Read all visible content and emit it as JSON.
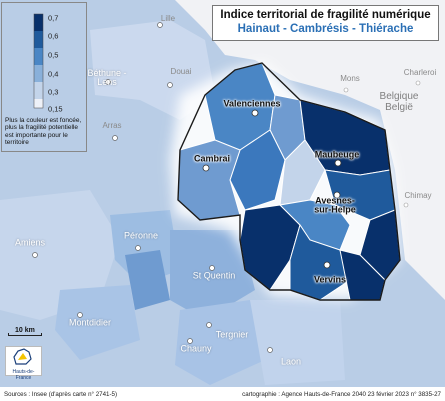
{
  "title": {
    "line1": "Indice territorial de fragilité numérique",
    "line2": "Hainaut - Cambrésis - Thiérache"
  },
  "legend": {
    "ticks": [
      "0,7",
      "0,6",
      "0,5",
      "0,4",
      "0,3",
      "0,15"
    ],
    "colors": [
      "#08306b",
      "#1f5a9c",
      "#4a86c5",
      "#89b0da",
      "#c3d4ea",
      "#eef1f8"
    ],
    "note": "Plus la couleur est foncée, plus la fragilité potentielle est importante pour le territoire"
  },
  "cities_study": [
    {
      "name": "Valenciennes",
      "id": "valenciennes"
    },
    {
      "name": "Maubeuge",
      "id": "maubeuge"
    },
    {
      "name": "Cambrai",
      "id": "cambrai"
    },
    {
      "name": "Avesnes-sur-Helpe",
      "id": "avesnes"
    },
    {
      "name": "Vervins",
      "id": "vervins"
    }
  ],
  "cities_region": [
    {
      "name": "Lille",
      "id": "lille"
    },
    {
      "name": "Béthune - Lens",
      "id": "bethune-lens"
    },
    {
      "name": "Douai",
      "id": "douai"
    },
    {
      "name": "Arras",
      "id": "arras"
    },
    {
      "name": "Amiens",
      "id": "amiens"
    },
    {
      "name": "Péronne",
      "id": "peronne"
    },
    {
      "name": "St Quentin",
      "id": "st-quentin"
    },
    {
      "name": "Montdidier",
      "id": "montdidier"
    },
    {
      "name": "Tergnier",
      "id": "tergnier"
    },
    {
      "name": "Chauny",
      "id": "chauny"
    },
    {
      "name": "Laon",
      "id": "laon"
    }
  ],
  "cities_belgium": [
    {
      "name": "Mons",
      "id": "mons"
    },
    {
      "name": "Charleroi",
      "id": "charleroi"
    },
    {
      "name": "Chimay",
      "id": "chimay"
    }
  ],
  "country": "Belgique België",
  "scale": "10 km",
  "logo_text": "Hauts-de-France",
  "footer": {
    "sources": "Sources : Insee (d'après carte n° 2741-5)",
    "credits": "cartographie : Agence Hauts-de-France 2040    23 février 2023  n° 3835-27"
  }
}
